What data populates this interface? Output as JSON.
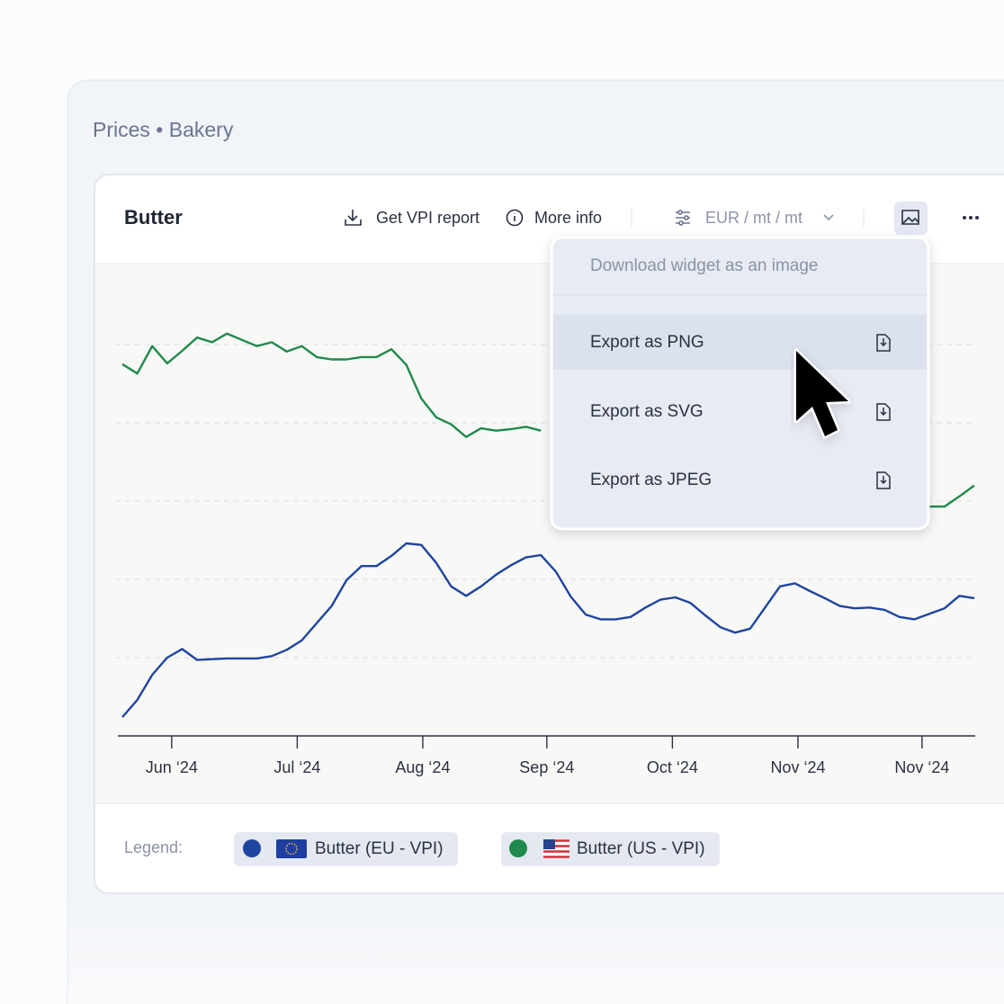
{
  "header": {
    "breadcrumb": "Prices • Bakery"
  },
  "widget": {
    "title": "Butter",
    "toolbar": [
      "Get VPI report",
      "More info"
    ],
    "unit": "EUR / mt / mt"
  },
  "menu": {
    "title": "Download widget as an image",
    "items": [
      "Export as PNG",
      "Export as SVG",
      "Export as JPEG"
    ]
  },
  "legend": {
    "label": "Legend:"
  },
  "chart_data": {
    "type": "line",
    "xlim": [
      0,
      57
    ],
    "xticks": [
      {
        "value": 3.3,
        "label": "Jun ‘24"
      },
      {
        "value": 11.7,
        "label": "Jul ‘24"
      },
      {
        "value": 20.1,
        "label": "Aug ‘24"
      },
      {
        "value": 28.4,
        "label": "Sep ‘24"
      },
      {
        "value": 36.8,
        "label": "Oct ‘24"
      },
      {
        "value": 45.2,
        "label": "Nov ‘24"
      },
      {
        "value": 53.5,
        "label": "Nov ‘24"
      }
    ],
    "ylim": [
      0,
      600
    ],
    "yticks": [
      100,
      200,
      300,
      400,
      500
    ],
    "grid": true,
    "series": [
      {
        "name": "Butter (EU - VPI)",
        "color": "#1e45a0",
        "values": [
          24,
          46,
          78,
          100,
          111,
          97,
          98,
          99,
          99,
          99,
          102,
          110,
          122,
          144,
          166,
          199,
          217,
          217,
          230,
          246,
          244,
          221,
          191,
          179,
          191,
          206,
          218,
          228,
          231,
          210,
          178,
          155,
          149,
          149,
          152,
          164,
          174,
          177,
          170,
          154,
          139,
          132,
          137,
          164,
          191,
          195,
          185,
          176,
          166,
          163,
          164,
          161,
          152,
          149,
          156,
          163,
          179,
          176
        ]
      },
      {
        "name": "Butter (US - VPI)",
        "color": "#1f8a4c",
        "values": [
          475,
          463,
          498,
          476,
          492,
          509,
          503,
          514,
          506,
          498,
          503,
          491,
          498,
          484,
          481,
          481,
          484,
          484,
          494,
          474,
          431,
          407,
          398,
          382,
          393,
          390,
          392,
          395,
          390,
          null,
          null,
          null,
          null,
          null,
          null,
          null,
          null,
          null,
          null,
          null,
          null,
          null,
          null,
          null,
          null,
          null,
          null,
          null,
          null,
          null,
          null,
          null,
          null,
          null,
          293,
          293,
          306,
          320
        ]
      }
    ]
  }
}
